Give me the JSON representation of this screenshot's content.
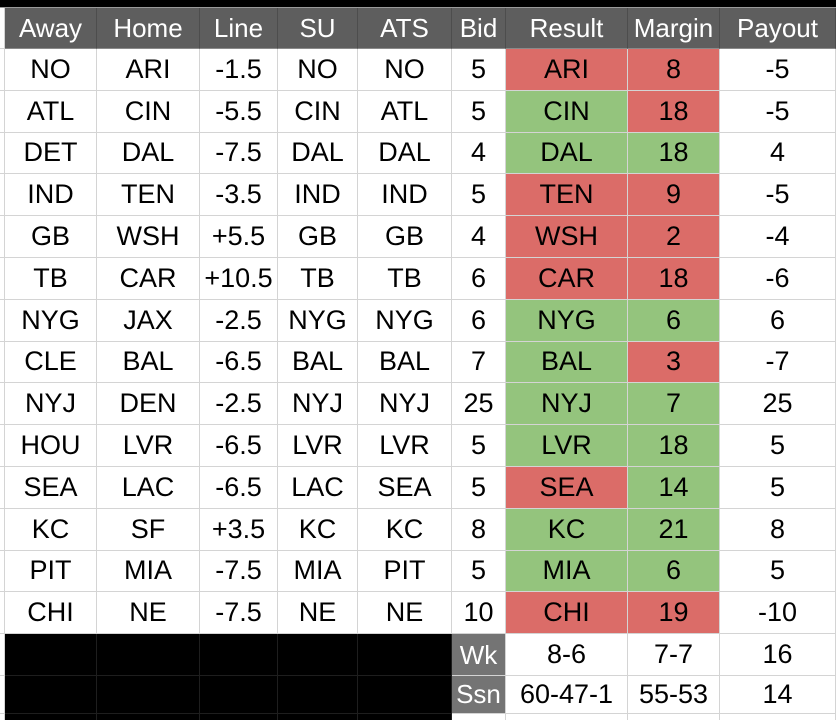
{
  "table": {
    "columns": [
      {
        "key": "away",
        "label": "Away"
      },
      {
        "key": "home",
        "label": "Home"
      },
      {
        "key": "line",
        "label": "Line"
      },
      {
        "key": "su",
        "label": "SU"
      },
      {
        "key": "ats",
        "label": "ATS"
      },
      {
        "key": "bid",
        "label": "Bid"
      },
      {
        "key": "result",
        "label": "Result"
      },
      {
        "key": "margin",
        "label": "Margin"
      },
      {
        "key": "payout",
        "label": "Payout"
      }
    ],
    "rows": [
      {
        "away": "NO",
        "home": "ARI",
        "line": "-1.5",
        "su": "NO",
        "ats": "NO",
        "bid": "5",
        "result": "ARI",
        "result_outcome": "loss",
        "margin": "8",
        "margin_outcome": "loss",
        "payout": "-5"
      },
      {
        "away": "ATL",
        "home": "CIN",
        "line": "-5.5",
        "su": "CIN",
        "ats": "ATL",
        "bid": "5",
        "result": "CIN",
        "result_outcome": "win",
        "margin": "18",
        "margin_outcome": "loss",
        "payout": "-5"
      },
      {
        "away": "DET",
        "home": "DAL",
        "line": "-7.5",
        "su": "DAL",
        "ats": "DAL",
        "bid": "4",
        "result": "DAL",
        "result_outcome": "win",
        "margin": "18",
        "margin_outcome": "win",
        "payout": "4"
      },
      {
        "away": "IND",
        "home": "TEN",
        "line": "-3.5",
        "su": "IND",
        "ats": "IND",
        "bid": "5",
        "result": "TEN",
        "result_outcome": "loss",
        "margin": "9",
        "margin_outcome": "loss",
        "payout": "-5"
      },
      {
        "away": "GB",
        "home": "WSH",
        "line": "+5.5",
        "su": "GB",
        "ats": "GB",
        "bid": "4",
        "result": "WSH",
        "result_outcome": "loss",
        "margin": "2",
        "margin_outcome": "loss",
        "payout": "-4"
      },
      {
        "away": "TB",
        "home": "CAR",
        "line": "+10.5",
        "su": "TB",
        "ats": "TB",
        "bid": "6",
        "result": "CAR",
        "result_outcome": "loss",
        "margin": "18",
        "margin_outcome": "loss",
        "payout": "-6"
      },
      {
        "away": "NYG",
        "home": "JAX",
        "line": "-2.5",
        "su": "NYG",
        "ats": "NYG",
        "bid": "6",
        "result": "NYG",
        "result_outcome": "win",
        "margin": "6",
        "margin_outcome": "win",
        "payout": "6"
      },
      {
        "away": "CLE",
        "home": "BAL",
        "line": "-6.5",
        "su": "BAL",
        "ats": "BAL",
        "bid": "7",
        "result": "BAL",
        "result_outcome": "win",
        "margin": "3",
        "margin_outcome": "loss",
        "payout": "-7"
      },
      {
        "away": "NYJ",
        "home": "DEN",
        "line": "-2.5",
        "su": "NYJ",
        "ats": "NYJ",
        "bid": "25",
        "result": "NYJ",
        "result_outcome": "win",
        "margin": "7",
        "margin_outcome": "win",
        "payout": "25"
      },
      {
        "away": "HOU",
        "home": "LVR",
        "line": "-6.5",
        "su": "LVR",
        "ats": "LVR",
        "bid": "5",
        "result": "LVR",
        "result_outcome": "win",
        "margin": "18",
        "margin_outcome": "win",
        "payout": "5"
      },
      {
        "away": "SEA",
        "home": "LAC",
        "line": "-6.5",
        "su": "LAC",
        "ats": "SEA",
        "bid": "5",
        "result": "SEA",
        "result_outcome": "loss",
        "margin": "14",
        "margin_outcome": "win",
        "payout": "5"
      },
      {
        "away": "KC",
        "home": "SF",
        "line": "+3.5",
        "su": "KC",
        "ats": "KC",
        "bid": "8",
        "result": "KC",
        "result_outcome": "win",
        "margin": "21",
        "margin_outcome": "win",
        "payout": "8"
      },
      {
        "away": "PIT",
        "home": "MIA",
        "line": "-7.5",
        "su": "MIA",
        "ats": "PIT",
        "bid": "5",
        "result": "MIA",
        "result_outcome": "win",
        "margin": "6",
        "margin_outcome": "win",
        "payout": "5"
      },
      {
        "away": "CHI",
        "home": "NE",
        "line": "-7.5",
        "su": "NE",
        "ats": "NE",
        "bid": "10",
        "result": "CHI",
        "result_outcome": "loss",
        "margin": "19",
        "margin_outcome": "loss",
        "payout": "-10"
      }
    ],
    "footer_rows": [
      {
        "label": "Wk",
        "result": "8-6",
        "margin": "7-7",
        "payout": "16"
      },
      {
        "label": "Ssn",
        "result": "60-47-1",
        "margin": "55-53",
        "payout": "14"
      }
    ]
  },
  "colors": {
    "win_green": "#94c47d",
    "loss_red": "#db6c68",
    "header_bg": "#5e5e5e",
    "footer_label_bg": "#747474",
    "grid_line": "#d4d4d4",
    "black_grid_line": "#1e1e1e"
  }
}
